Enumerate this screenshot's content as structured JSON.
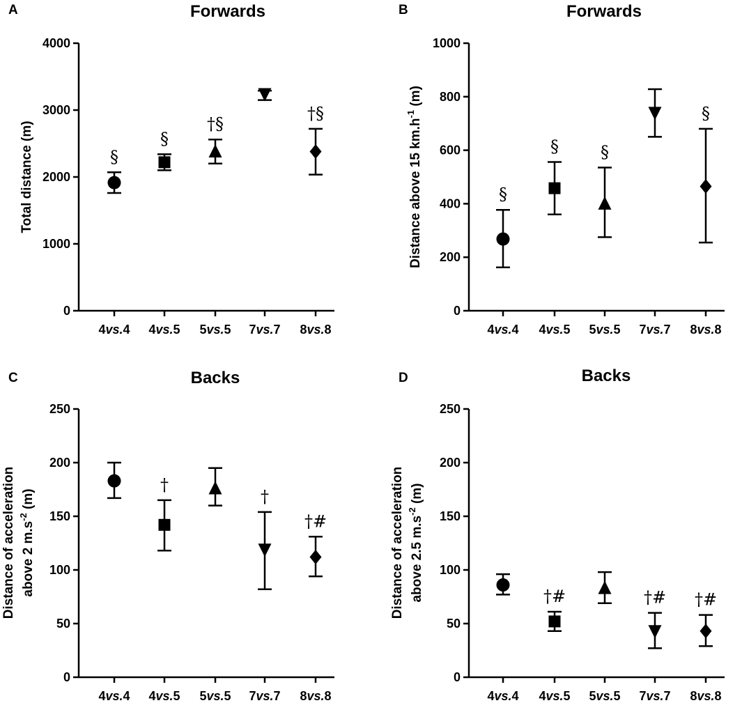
{
  "chart_data": [
    {
      "panel": "A",
      "type": "scatter",
      "title": "Forwards",
      "ylabel": "Total distance (m)",
      "ylim": [
        0,
        4000
      ],
      "yticks": [
        0,
        1000,
        2000,
        3000,
        4000
      ],
      "categories": [
        "4vs.4",
        "4vs.5",
        "5vs.5",
        "7vs.7",
        "8vs.8"
      ],
      "values": [
        1915,
        2220,
        2380,
        3240,
        2380
      ],
      "err_low": [
        1760,
        2100,
        2200,
        3150,
        2035
      ],
      "err_high": [
        2070,
        2340,
        2560,
        3290,
        2720
      ],
      "markers": [
        "circle",
        "square",
        "triangle-up",
        "triangle-down",
        "diamond"
      ],
      "annotations": [
        "§",
        "§",
        "†§",
        "",
        "†§"
      ]
    },
    {
      "panel": "B",
      "type": "scatter",
      "title": "Forwards",
      "ylabel_main": "Distance above 15 km.h",
      "ylabel_sup": "-1",
      "ylabel_unit": " (m)",
      "ylim": [
        0,
        1000
      ],
      "yticks": [
        0,
        200,
        400,
        600,
        800,
        1000
      ],
      "categories": [
        "4vs.4",
        "4vs.5",
        "5vs.5",
        "7vs.7",
        "8vs.8"
      ],
      "values": [
        268,
        458,
        400,
        740,
        465
      ],
      "err_low": [
        162,
        360,
        275,
        650,
        255
      ],
      "err_high": [
        377,
        556,
        535,
        828,
        680
      ],
      "markers": [
        "circle",
        "square",
        "triangle-up",
        "triangle-down",
        "diamond"
      ],
      "annotations": [
        "§",
        "§",
        "§",
        "",
        "§"
      ]
    },
    {
      "panel": "C",
      "type": "scatter",
      "title": "Backs",
      "ylabel_line1": "Distance of acceleration",
      "ylabel_line2_main": "above 2 m.s",
      "ylabel_line2_sup": "-2",
      "ylabel_line2_unit": " (m)",
      "ylim": [
        0,
        250
      ],
      "yticks": [
        0,
        50,
        100,
        150,
        200,
        250
      ],
      "categories": [
        "4vs.4",
        "4vs.5",
        "5vs.5",
        "7vs.7",
        "8vs.8"
      ],
      "values": [
        183,
        142,
        176,
        119,
        112
      ],
      "err_low": [
        167,
        118,
        160,
        82,
        94
      ],
      "err_high": [
        200,
        165,
        195,
        154,
        131
      ],
      "markers": [
        "circle",
        "square",
        "triangle-up",
        "triangle-down",
        "diamond"
      ],
      "annotations": [
        "",
        "†",
        "",
        "†",
        "†#"
      ]
    },
    {
      "panel": "D",
      "type": "scatter",
      "title": "Backs",
      "ylabel_line1": "Distance of acceleration",
      "ylabel_line2_main": "above 2.5 m.s",
      "ylabel_line2_sup": "-2",
      "ylabel_line2_unit": " (m)",
      "ylim": [
        0,
        250
      ],
      "yticks": [
        0,
        50,
        100,
        150,
        200,
        250
      ],
      "categories": [
        "4vs.4",
        "4vs.5",
        "5vs.5",
        "7vs.7",
        "8vs.8"
      ],
      "values": [
        86,
        52,
        83,
        43,
        43
      ],
      "err_low": [
        77,
        43,
        69,
        27,
        29
      ],
      "err_high": [
        96,
        61,
        98,
        60,
        58
      ],
      "markers": [
        "circle",
        "square",
        "triangle-up",
        "triangle-down",
        "diamond"
      ],
      "annotations": [
        "",
        "†#",
        "",
        "†#",
        "†#"
      ]
    }
  ]
}
